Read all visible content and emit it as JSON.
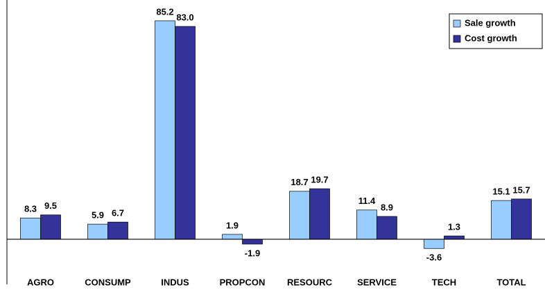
{
  "chart_data": {
    "type": "bar",
    "categories": [
      "AGRO",
      "CONSUMP",
      "INDUS",
      "PROPCON",
      "RESOURC",
      "SERVICE",
      "TECH",
      "TOTAL"
    ],
    "series": [
      {
        "name": "Sale growth",
        "color": "#99ccff",
        "values": [
          8.3,
          5.9,
          85.2,
          1.9,
          18.7,
          11.4,
          -3.6,
          15.1
        ],
        "value_labels": [
          "8.3",
          "5.9",
          "85.2",
          "1.9",
          "18.7",
          "11.4",
          "-3.6",
          "15.1"
        ]
      },
      {
        "name": "Cost growth",
        "color": "#333399",
        "values": [
          9.5,
          6.7,
          83.0,
          -1.9,
          19.7,
          8.9,
          1.3,
          15.7
        ],
        "value_labels": [
          "9.5",
          "6.7",
          "83.0",
          "-1.9",
          "19.7",
          "8.9",
          "1.3",
          "15.7"
        ]
      }
    ],
    "ylim": [
      -17.6,
      93.3
    ],
    "legend": "top-right"
  }
}
